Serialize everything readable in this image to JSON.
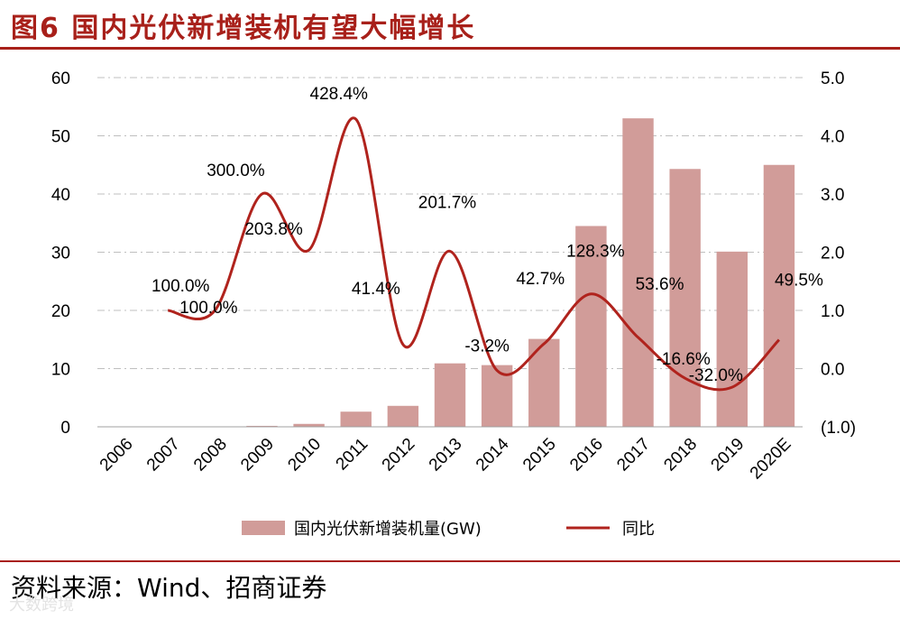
{
  "title": "图6 国内光伏新增装机有望大幅增长",
  "source": "资料来源：Wind、招商证券",
  "watermark": "大数跨境",
  "colors": {
    "bar": "#d19c99",
    "line": "#b0231d",
    "title": "#a8201a",
    "neg_tick": "#c0392b",
    "grid": "#bfbfbf"
  },
  "chart_data": {
    "type": "bar",
    "title": "国内光伏新增装机有望大幅增长",
    "categories": [
      "2006",
      "2007",
      "2008",
      "2009",
      "2010",
      "2011",
      "2012",
      "2013",
      "2014",
      "2015",
      "2016",
      "2017",
      "2018",
      "2019",
      "2020E"
    ],
    "series": [
      {
        "name": "国内光伏新增装机量(GW)",
        "type": "bar",
        "axis": "left",
        "values": [
          0.01,
          0.02,
          0.04,
          0.16,
          0.5,
          2.6,
          3.6,
          10.9,
          10.6,
          15.1,
          34.5,
          53.0,
          44.3,
          30.1,
          45.0
        ]
      },
      {
        "name": "同比",
        "type": "line",
        "axis": "right",
        "values": [
          null,
          1.0,
          1.0,
          3.0,
          2.038,
          4.284,
          0.414,
          2.017,
          -0.032,
          0.427,
          1.283,
          0.536,
          -0.166,
          -0.32,
          0.495
        ],
        "labels": [
          "",
          "100.0%",
          "100.0%",
          "300.0%",
          "203.8%",
          "428.4%",
          "41.4%",
          "201.7%",
          "-3.2%",
          "42.7%",
          "128.3%",
          "53.6%",
          "-16.6%",
          "-32.0%",
          "49.5%"
        ]
      }
    ],
    "left_axis": {
      "ylim": [
        0,
        60
      ],
      "ticks": [
        "0",
        "10",
        "20",
        "30",
        "40",
        "50",
        "60"
      ]
    },
    "right_axis": {
      "ylim": [
        -1,
        5
      ],
      "ticks": [
        "(1.0)",
        "0.0",
        "1.0",
        "2.0",
        "3.0",
        "4.0",
        "5.0"
      ]
    },
    "grid": true,
    "legend": {
      "position": "bottom",
      "entries": [
        "国内光伏新增装机量(GW)",
        "同比"
      ]
    }
  }
}
